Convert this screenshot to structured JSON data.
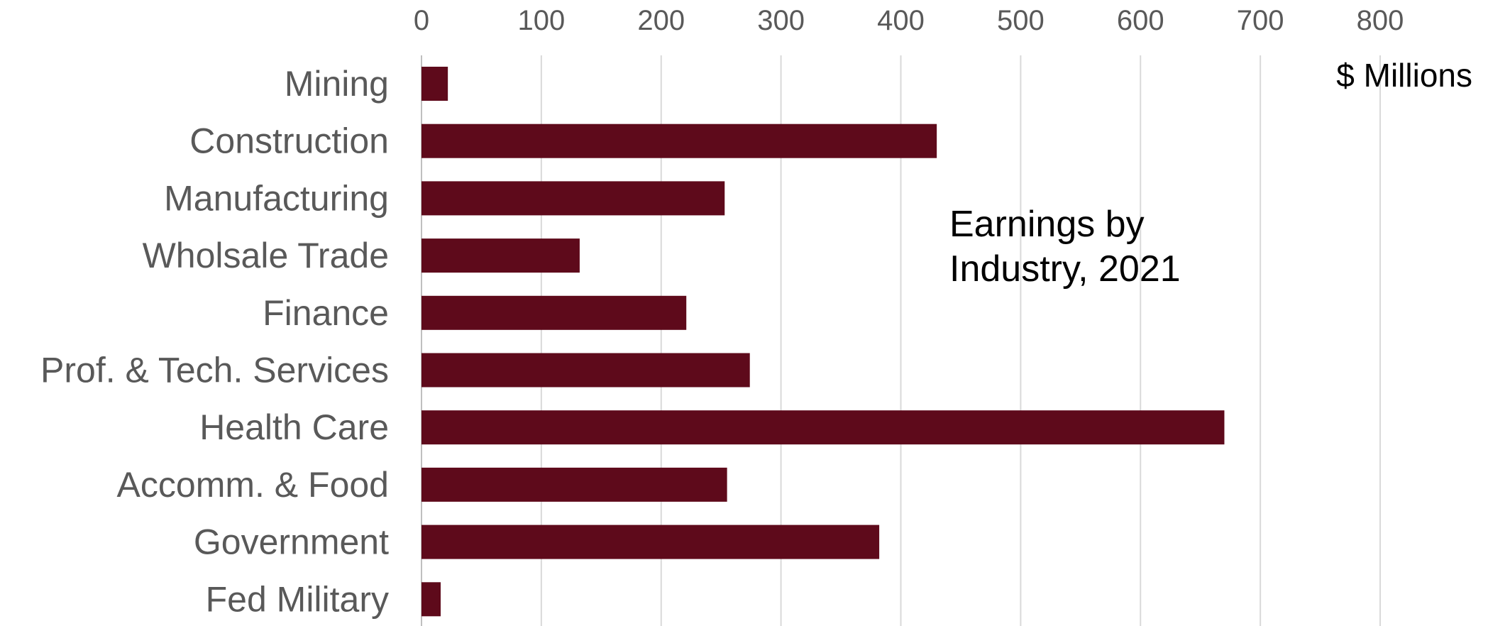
{
  "chart_data": {
    "type": "bar",
    "orientation": "horizontal",
    "title": "Earnings by Industry, 2021",
    "title_lines": [
      "Earnings by",
      "Industry, 2021"
    ],
    "unit_label": "$ Millions",
    "xlim": [
      0,
      800
    ],
    "x_ticks": [
      "0",
      "100",
      "200",
      "300",
      "400",
      "500",
      "600",
      "700",
      "800"
    ],
    "x_tick_values": [
      0,
      100,
      200,
      300,
      400,
      500,
      600,
      700,
      800
    ],
    "grid": true,
    "axis_position": "top",
    "categories": [
      "Mining",
      "Construction",
      "Manufacturing",
      "Wholsale Trade",
      "Finance",
      "Prof. & Tech. Services",
      "Health Care",
      "Accomm. & Food",
      "Government",
      "Fed Military"
    ],
    "values": [
      22,
      430,
      253,
      132,
      221,
      274,
      670,
      255,
      382,
      16
    ],
    "colors": {
      "bar": "#5e0a1b",
      "grid": "#d9d9d9",
      "axis": "#bfbfbf",
      "label": "#595959"
    }
  }
}
